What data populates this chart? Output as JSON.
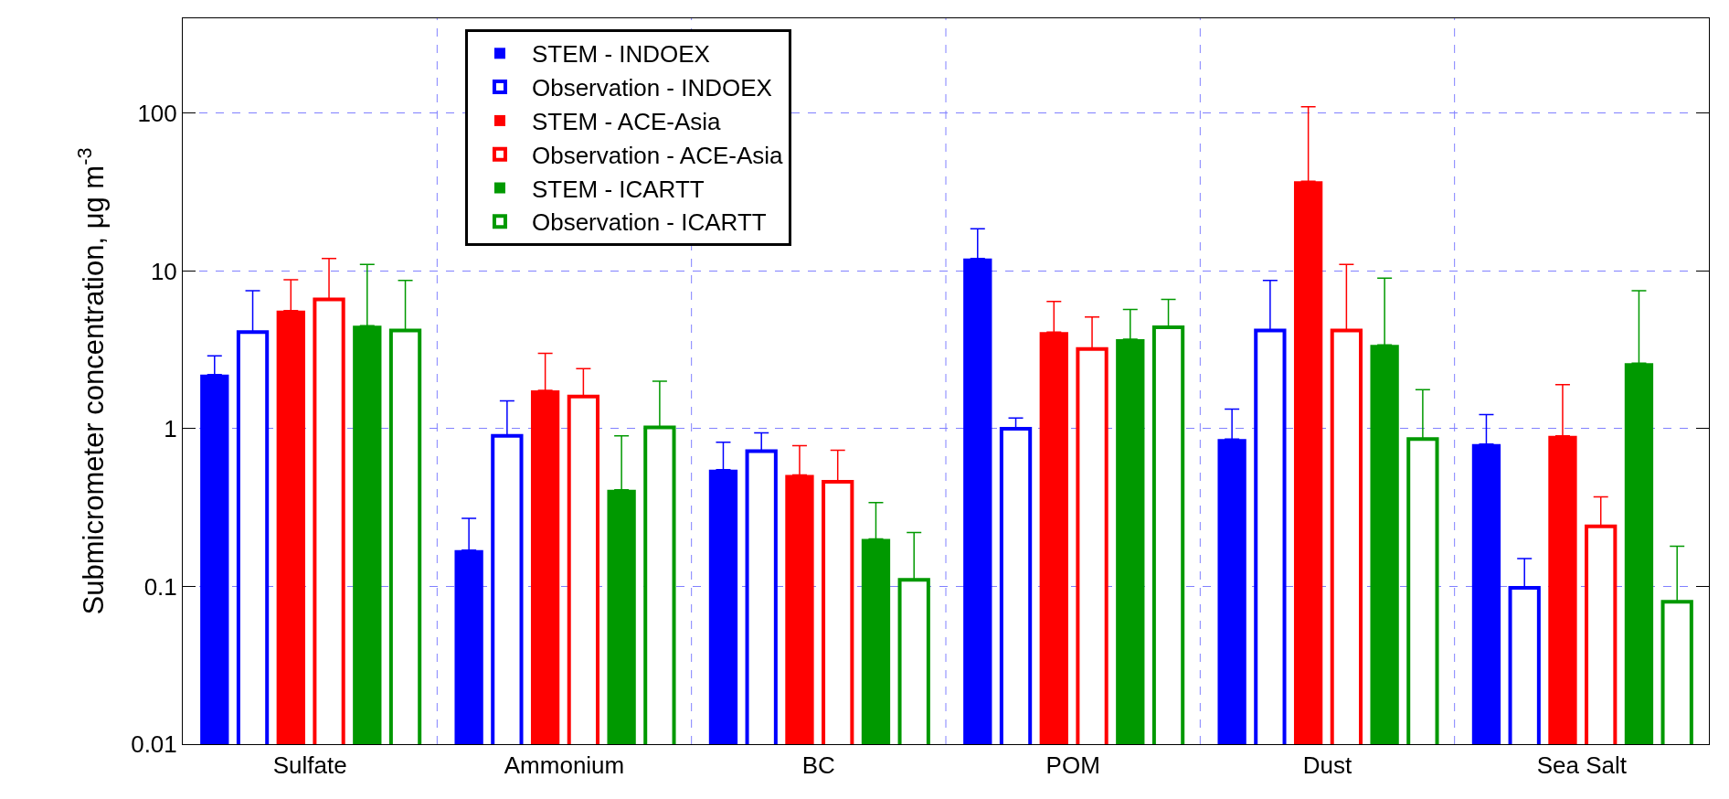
{
  "chart_data": {
    "type": "bar",
    "ylabel": "Submicrometer concentration, μg m$^{-3}$",
    "categories": [
      "Sulfate",
      "Ammonium",
      "BC",
      "POM",
      "Dust",
      "Sea Salt"
    ],
    "log": true,
    "ylim": [
      0.01,
      400
    ],
    "yticks": [
      0.01,
      0.1,
      1,
      10,
      100
    ],
    "grid": true,
    "legend": "top left",
    "series": [
      {
        "name": "STEM - INDOEX",
        "color": "#0000ff",
        "values": [
          2.2,
          0.17,
          0.55,
          12,
          0.86,
          0.8
        ],
        "errors": [
          [
            2.2,
            2.9
          ],
          [
            0.17,
            0.27
          ],
          [
            0.55,
            0.82
          ],
          [
            12,
            18.5
          ],
          [
            0.86,
            1.33
          ],
          [
            0.8,
            1.23
          ]
        ]
      },
      {
        "name": "Observation - INDOEX",
        "color": "#0000ff",
        "values": [
          4.1,
          0.9,
          0.72,
          1.0,
          4.2,
          0.098
        ],
        "errors": [
          [
            4.1,
            7.5
          ],
          [
            0.9,
            1.5
          ],
          [
            0.72,
            0.94
          ],
          [
            1.0,
            1.17
          ],
          [
            4.2,
            8.7
          ],
          [
            0.098,
            0.15
          ]
        ]
      },
      {
        "name": "STEM - ACE-Asia",
        "color": "#ff0000",
        "values": [
          5.6,
          1.75,
          0.51,
          4.1,
          37,
          0.9
        ],
        "errors": [
          [
            5.6,
            8.8
          ],
          [
            1.75,
            3.0
          ],
          [
            0.51,
            0.78
          ],
          [
            4.1,
            6.4
          ],
          [
            37,
            110
          ],
          [
            0.9,
            1.9
          ]
        ]
      },
      {
        "name": "Observation - ACE-Asia",
        "color": "#ff0000",
        "values": [
          6.6,
          1.6,
          0.46,
          3.2,
          4.2,
          0.24
        ],
        "errors": [
          [
            6.6,
            12
          ],
          [
            1.6,
            2.4
          ],
          [
            0.46,
            0.73
          ],
          [
            3.2,
            5.1
          ],
          [
            4.2,
            11
          ],
          [
            0.24,
            0.37
          ]
        ]
      },
      {
        "name": "STEM - ICARTT",
        "color": "#009900",
        "values": [
          4.5,
          0.41,
          0.2,
          3.7,
          3.4,
          2.6
        ],
        "errors": [
          [
            4.5,
            11
          ],
          [
            0.41,
            0.9
          ],
          [
            0.2,
            0.34
          ],
          [
            3.7,
            5.7
          ],
          [
            3.4,
            9.0
          ],
          [
            2.6,
            7.5
          ]
        ]
      },
      {
        "name": "Observation - ICARTT",
        "color": "#009900",
        "values": [
          4.2,
          1.02,
          0.11,
          4.4,
          0.86,
          0.08
        ],
        "errors": [
          [
            4.2,
            8.7
          ],
          [
            1.02,
            2.0
          ],
          [
            0.11,
            0.22
          ],
          [
            4.4,
            6.6
          ],
          [
            0.86,
            1.77
          ],
          [
            0.08,
            0.18
          ]
        ]
      }
    ]
  }
}
